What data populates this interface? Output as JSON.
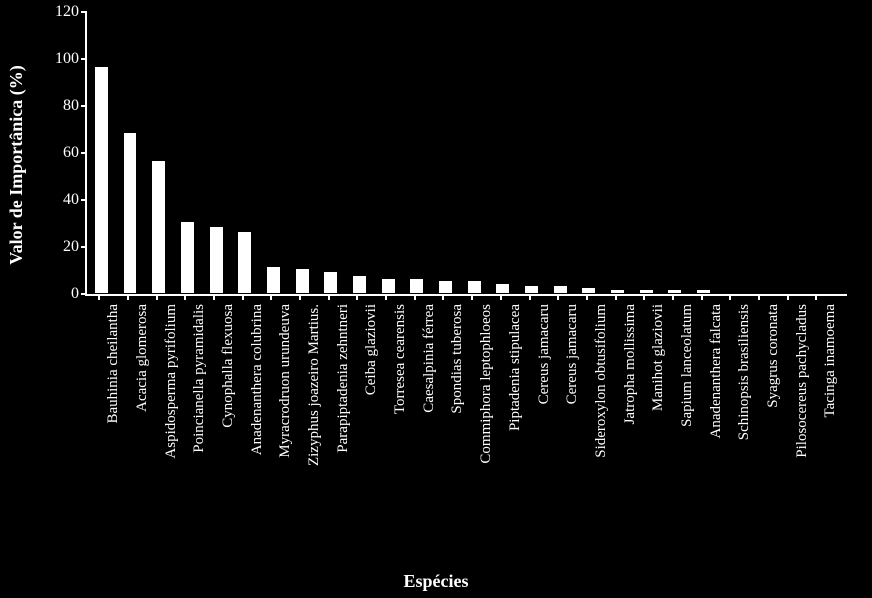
{
  "chart": {
    "type": "bar",
    "background_color": "#000000",
    "axis_color": "#ffffff",
    "text_color": "#ffffff",
    "bar_color": "#ffffff",
    "bar_border": "#000000",
    "y_title": "Valor de Importânica (%)",
    "x_title": "Espécies",
    "y_title_fontsize": 18,
    "x_title_fontsize": 18,
    "tick_fontsize": 16,
    "xlabel_fontsize": 15,
    "ylim": [
      0,
      120
    ],
    "ytick_step": 20,
    "yticks": [
      0,
      20,
      40,
      60,
      80,
      100,
      120
    ],
    "bar_width_ratio": 0.52,
    "first_bar_offset": 0.5,
    "categories": [
      "Bauhinia cheilantha",
      "Acacia glomerosa",
      "Aspidosperma pyrifolium",
      "Poincianella pyramidalis",
      "Cynophalla flexuosa",
      "Anadenanthera colubrina",
      "Myracrodruon urundeuva",
      "Zizyphus joazeiro Martius.",
      "Parapiptadenia zehntneri",
      "Ceiba glaziovii",
      "Torresea cearensis",
      "Caesalpinia férrea",
      "Spondias tuberosa",
      "Commiphora leptophloeos",
      "Piptadenia stipulacea",
      "Cereus jamacaru",
      "Cereus jamacaru",
      "Sideroxylon obtusifolium",
      "Jatropha mollissima",
      "Manihot glaziovii",
      "Sapium lanceolatum",
      "Anadenanthera falcata",
      "Schinopsis brasiliensis",
      "Syagrus coronata",
      "Pilosocereus pachycladus",
      "Tacinga inamoema"
    ],
    "values": [
      97,
      69,
      57,
      31,
      29,
      27,
      12,
      11,
      10,
      8,
      7,
      7,
      6,
      6,
      4.5,
      4,
      4,
      3,
      2,
      2,
      2,
      2,
      1,
      1,
      1,
      1
    ]
  }
}
